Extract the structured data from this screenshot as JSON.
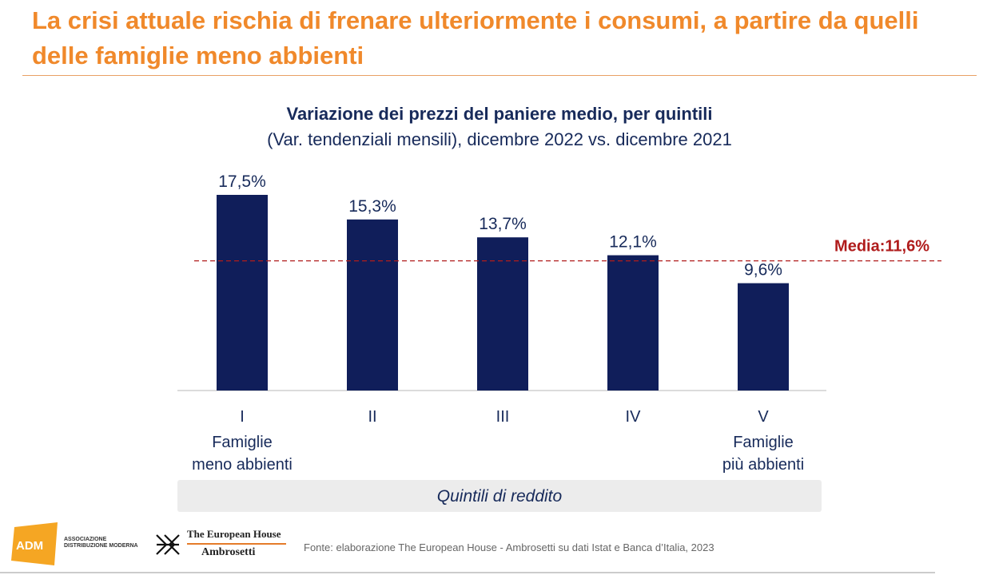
{
  "header": {
    "title": "La crisi attuale rischia di frenare ulteriormente i consumi, a partire da quelli delle famiglie meno abbienti"
  },
  "footer": {
    "adm_line1": "ASSOCIAZIONE",
    "adm_line2": "DISTRIBUZIONE MODERNA",
    "adm_logo_text": "ADM",
    "teh_line1": "The European House",
    "teh_line2": "Ambrosetti",
    "source": "Fonte: elaborazione The European House - Ambrosetti su dati Istat e Banca d’Italia, 2023"
  },
  "colors": {
    "accent": "#f0892b",
    "bar": "#101e5a",
    "average_line": "#b01c1c",
    "text": "#172a5a"
  },
  "chart_data": {
    "type": "bar",
    "title": "Variazione dei prezzi del paniere medio, per quintili",
    "subtitle": "(Var. tendenziali mensili), dicembre 2022 vs. dicembre 2021",
    "xlabel": "Quintili di reddito",
    "ylabel": "",
    "ylim": [
      0,
      18
    ],
    "categories": [
      "I",
      "II",
      "III",
      "IV",
      "V"
    ],
    "category_sublabels": [
      [
        "Famiglie",
        "meno abbienti"
      ],
      [],
      [],
      [],
      [
        "Famiglie",
        "più abbienti"
      ]
    ],
    "values": [
      17.5,
      15.3,
      13.7,
      12.1,
      9.6
    ],
    "data_labels": [
      "17,5%",
      "15,3%",
      "13,7%",
      "12,1%",
      "9,6%"
    ],
    "reference_line": {
      "value": 11.6,
      "label": "Media:11,6%"
    },
    "grid": false,
    "legend": "none"
  }
}
